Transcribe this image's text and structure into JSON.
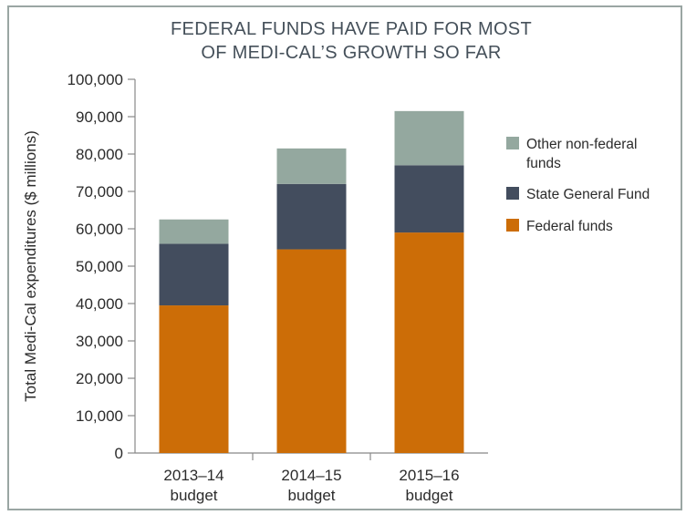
{
  "chart_data": {
    "type": "bar",
    "stacked": true,
    "title_lines": [
      "FEDERAL FUNDS HAVE PAID FOR MOST",
      "OF MEDI-CAL’S GROWTH SO FAR"
    ],
    "ylabel": "Total Medi-Cal expenditures ($ millions)",
    "xlabel": "",
    "ylim": [
      0,
      100000
    ],
    "yticks": [
      0,
      10000,
      20000,
      30000,
      40000,
      50000,
      60000,
      70000,
      80000,
      90000,
      100000
    ],
    "ytick_labels": [
      "0",
      "10,000",
      "20,000",
      "30,000",
      "40,000",
      "50,000",
      "60,000",
      "70,000",
      "80,000",
      "90,000",
      "100,000"
    ],
    "categories": [
      {
        "line1": "2013–14",
        "line2": "budget"
      },
      {
        "line1": "2014–15",
        "line2": "budget"
      },
      {
        "line1": "2015–16",
        "line2": "budget"
      }
    ],
    "series": [
      {
        "name": "Federal funds",
        "color": "#cc6d07",
        "values": [
          39500,
          54500,
          59000
        ]
      },
      {
        "name": "State General Fund",
        "color": "#434d5e",
        "values": [
          16500,
          17500,
          18000
        ]
      },
      {
        "name": "Other non-federal funds",
        "color": "#94a89f",
        "values": [
          6500,
          9500,
          14500
        ]
      }
    ],
    "legend": [
      {
        "lines": [
          "Other non-federal",
          "funds"
        ],
        "color": "#94a89f"
      },
      {
        "lines": [
          "State General Fund"
        ],
        "color": "#434d5e"
      },
      {
        "lines": [
          "Federal funds"
        ],
        "color": "#cc6d07"
      }
    ],
    "legend_position": "right",
    "grid": false
  }
}
